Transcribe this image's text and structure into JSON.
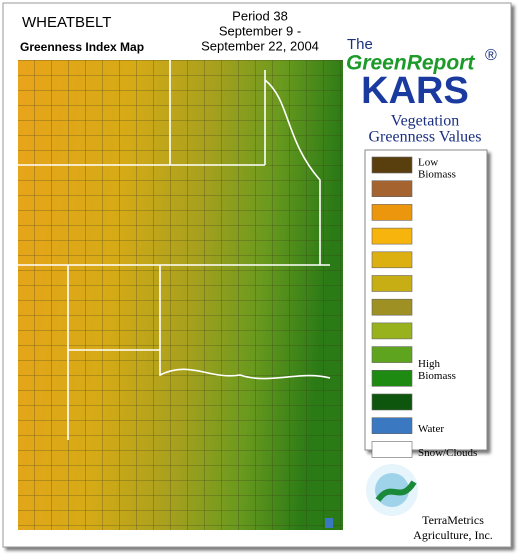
{
  "header": {
    "title": "WHEATBELT",
    "subtitle": "Greenness Index Map",
    "period": [
      "Period 38",
      "September 9 -",
      "September 22, 2004"
    ]
  },
  "brand": {
    "the": "The",
    "name": "GreenReport",
    "mark": "®",
    "product": "KARS"
  },
  "legend": {
    "title": [
      "Vegetation",
      "Greenness Values"
    ],
    "items": [
      {
        "color": "#5a3f0e",
        "label": [
          "Low",
          "Biomass"
        ]
      },
      {
        "color": "#a4632f"
      },
      {
        "color": "#ec960e"
      },
      {
        "color": "#f7b40c"
      },
      {
        "color": "#ddb012"
      },
      {
        "color": "#c6ae14"
      },
      {
        "color": "#9e9022"
      },
      {
        "color": "#98b21e"
      },
      {
        "color": "#5ea41e"
      },
      {
        "color": "#1e8a12"
      },
      {
        "color": "#0e560e"
      },
      {
        "color": "#3a78c2",
        "label": [
          "Water"
        ]
      },
      {
        "color": "#ffffff",
        "label": [
          "Snow/Clouds"
        ]
      }
    ],
    "high_label": [
      "High",
      "Biomass"
    ]
  },
  "footer": {
    "company": [
      "TerraMetrics",
      "Agriculture, Inc."
    ]
  }
}
